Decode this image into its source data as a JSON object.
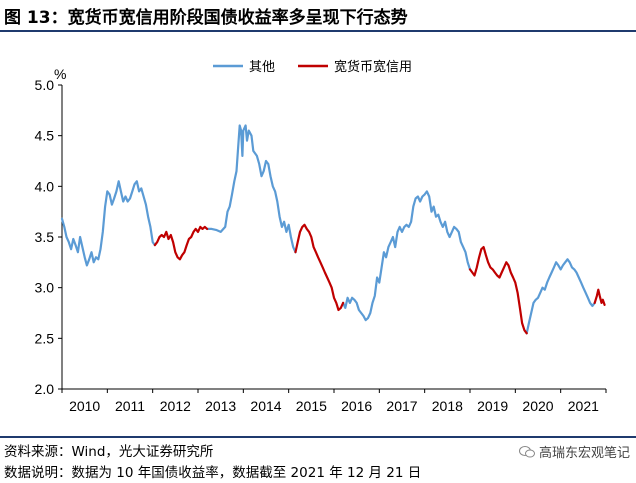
{
  "figure": {
    "title": "图 13：宽货币宽信用阶段国债收益率多呈现下行态势",
    "source_line": "资料来源：Wind，光大证券研究所",
    "note_line": "数据说明：数据为 10 年国债收益率，数据截至 2021 年 12 月 21 日",
    "watermark": "高瑞东宏观笔记"
  },
  "colors": {
    "other": "#5b9bd5",
    "easing": "#c00000",
    "rule": "#1f3a6e"
  },
  "chart_data": {
    "type": "line",
    "unit_label": "%",
    "xlim": [
      2010.0,
      2022.0
    ],
    "ylim": [
      2.0,
      5.0
    ],
    "yticks": [
      "2.0",
      "2.5",
      "3.0",
      "3.5",
      "4.0",
      "4.5",
      "5.0"
    ],
    "xticks": [
      "2010",
      "2011",
      "2012",
      "2013",
      "2014",
      "2015",
      "2016",
      "2017",
      "2018",
      "2019",
      "2020",
      "2021"
    ],
    "legend": {
      "position": "top",
      "labels": [
        "其他",
        "宽货币宽信用"
      ]
    },
    "grid": false,
    "series": [
      {
        "name": "其他",
        "color_key": "other",
        "segments": [
          [
            [
              2010.0,
              3.68
            ],
            [
              2010.05,
              3.6
            ],
            [
              2010.1,
              3.5
            ],
            [
              2010.15,
              3.45
            ],
            [
              2010.2,
              3.38
            ],
            [
              2010.25,
              3.48
            ],
            [
              2010.3,
              3.42
            ],
            [
              2010.35,
              3.35
            ],
            [
              2010.4,
              3.5
            ],
            [
              2010.45,
              3.4
            ],
            [
              2010.5,
              3.3
            ],
            [
              2010.55,
              3.22
            ],
            [
              2010.6,
              3.28
            ],
            [
              2010.65,
              3.35
            ],
            [
              2010.7,
              3.25
            ],
            [
              2010.75,
              3.3
            ],
            [
              2010.8,
              3.28
            ],
            [
              2010.85,
              3.38
            ],
            [
              2010.9,
              3.55
            ],
            [
              2010.95,
              3.8
            ],
            [
              2011.0,
              3.95
            ],
            [
              2011.05,
              3.92
            ],
            [
              2011.1,
              3.82
            ],
            [
              2011.15,
              3.88
            ],
            [
              2011.2,
              3.95
            ],
            [
              2011.25,
              4.05
            ],
            [
              2011.3,
              3.95
            ],
            [
              2011.35,
              3.85
            ],
            [
              2011.4,
              3.9
            ],
            [
              2011.45,
              3.85
            ],
            [
              2011.5,
              3.88
            ],
            [
              2011.55,
              3.95
            ],
            [
              2011.6,
              4.02
            ],
            [
              2011.65,
              4.05
            ],
            [
              2011.7,
              3.95
            ],
            [
              2011.75,
              3.98
            ],
            [
              2011.8,
              3.9
            ],
            [
              2011.85,
              3.82
            ],
            [
              2011.9,
              3.7
            ],
            [
              2011.95,
              3.6
            ],
            [
              2012.0,
              3.45
            ],
            [
              2012.05,
              3.42
            ]
          ],
          [
            [
              2013.2,
              3.58
            ],
            [
              2013.3,
              3.58
            ],
            [
              2013.4,
              3.57
            ],
            [
              2013.5,
              3.55
            ],
            [
              2013.6,
              3.6
            ],
            [
              2013.65,
              3.75
            ],
            [
              2013.7,
              3.8
            ],
            [
              2013.75,
              3.92
            ],
            [
              2013.8,
              4.05
            ],
            [
              2013.85,
              4.15
            ],
            [
              2013.88,
              4.35
            ],
            [
              2013.92,
              4.6
            ],
            [
              2013.95,
              4.55
            ],
            [
              2013.98,
              4.3
            ],
            [
              2014.0,
              4.55
            ],
            [
              2014.05,
              4.6
            ],
            [
              2014.08,
              4.45
            ],
            [
              2014.12,
              4.55
            ],
            [
              2014.18,
              4.5
            ],
            [
              2014.22,
              4.35
            ],
            [
              2014.3,
              4.3
            ],
            [
              2014.35,
              4.22
            ],
            [
              2014.4,
              4.1
            ],
            [
              2014.45,
              4.15
            ],
            [
              2014.5,
              4.25
            ],
            [
              2014.55,
              4.22
            ],
            [
              2014.6,
              4.1
            ],
            [
              2014.65,
              4.0
            ],
            [
              2014.7,
              3.95
            ],
            [
              2014.75,
              3.85
            ],
            [
              2014.8,
              3.7
            ],
            [
              2014.85,
              3.6
            ],
            [
              2014.9,
              3.65
            ],
            [
              2014.95,
              3.55
            ],
            [
              2015.0,
              3.62
            ],
            [
              2015.05,
              3.5
            ],
            [
              2015.1,
              3.4
            ],
            [
              2015.15,
              3.35
            ]
          ],
          [
            [
              2016.2,
              2.85
            ],
            [
              2016.25,
              2.8
            ],
            [
              2016.3,
              2.9
            ],
            [
              2016.35,
              2.85
            ],
            [
              2016.4,
              2.9
            ],
            [
              2016.45,
              2.88
            ],
            [
              2016.5,
              2.85
            ],
            [
              2016.55,
              2.78
            ],
            [
              2016.6,
              2.75
            ],
            [
              2016.65,
              2.72
            ],
            [
              2016.7,
              2.68
            ],
            [
              2016.75,
              2.7
            ],
            [
              2016.8,
              2.75
            ],
            [
              2016.85,
              2.85
            ],
            [
              2016.9,
              2.92
            ],
            [
              2016.95,
              3.1
            ],
            [
              2017.0,
              3.05
            ],
            [
              2017.05,
              3.2
            ],
            [
              2017.1,
              3.35
            ],
            [
              2017.15,
              3.3
            ],
            [
              2017.2,
              3.4
            ],
            [
              2017.25,
              3.45
            ],
            [
              2017.3,
              3.5
            ],
            [
              2017.35,
              3.4
            ],
            [
              2017.4,
              3.55
            ],
            [
              2017.45,
              3.6
            ],
            [
              2017.5,
              3.55
            ],
            [
              2017.55,
              3.6
            ],
            [
              2017.6,
              3.62
            ],
            [
              2017.65,
              3.6
            ],
            [
              2017.7,
              3.65
            ],
            [
              2017.75,
              3.8
            ],
            [
              2017.8,
              3.88
            ],
            [
              2017.85,
              3.9
            ],
            [
              2017.9,
              3.85
            ],
            [
              2017.95,
              3.9
            ],
            [
              2018.0,
              3.92
            ],
            [
              2018.05,
              3.95
            ],
            [
              2018.1,
              3.9
            ],
            [
              2018.15,
              3.75
            ],
            [
              2018.2,
              3.8
            ],
            [
              2018.25,
              3.7
            ],
            [
              2018.3,
              3.72
            ],
            [
              2018.35,
              3.65
            ],
            [
              2018.4,
              3.6
            ],
            [
              2018.45,
              3.65
            ],
            [
              2018.5,
              3.55
            ],
            [
              2018.55,
              3.5
            ],
            [
              2018.6,
              3.55
            ],
            [
              2018.65,
              3.6
            ],
            [
              2018.7,
              3.58
            ],
            [
              2018.75,
              3.55
            ],
            [
              2018.8,
              3.45
            ],
            [
              2018.85,
              3.4
            ],
            [
              2018.9,
              3.35
            ],
            [
              2018.95,
              3.25
            ],
            [
              2019.0,
              3.18
            ]
          ],
          [
            [
              2020.25,
              2.55
            ],
            [
              2020.3,
              2.65
            ],
            [
              2020.35,
              2.75
            ],
            [
              2020.4,
              2.85
            ],
            [
              2020.45,
              2.88
            ],
            [
              2020.5,
              2.9
            ],
            [
              2020.55,
              2.95
            ],
            [
              2020.6,
              3.0
            ],
            [
              2020.65,
              2.98
            ],
            [
              2020.7,
              3.05
            ],
            [
              2020.75,
              3.1
            ],
            [
              2020.8,
              3.15
            ],
            [
              2020.85,
              3.2
            ],
            [
              2020.9,
              3.25
            ],
            [
              2020.95,
              3.22
            ],
            [
              2021.0,
              3.18
            ],
            [
              2021.05,
              3.22
            ],
            [
              2021.1,
              3.25
            ],
            [
              2021.15,
              3.28
            ],
            [
              2021.2,
              3.25
            ],
            [
              2021.25,
              3.2
            ],
            [
              2021.3,
              3.18
            ],
            [
              2021.35,
              3.15
            ],
            [
              2021.4,
              3.1
            ],
            [
              2021.45,
              3.05
            ],
            [
              2021.5,
              3.0
            ],
            [
              2021.55,
              2.95
            ],
            [
              2021.6,
              2.9
            ],
            [
              2021.65,
              2.85
            ],
            [
              2021.7,
              2.82
            ],
            [
              2021.75,
              2.85
            ]
          ]
        ]
      },
      {
        "name": "宽货币宽信用",
        "color_key": "easing",
        "segments": [
          [
            [
              2012.05,
              3.42
            ],
            [
              2012.1,
              3.45
            ],
            [
              2012.15,
              3.5
            ],
            [
              2012.2,
              3.52
            ],
            [
              2012.25,
              3.5
            ],
            [
              2012.3,
              3.55
            ],
            [
              2012.35,
              3.48
            ],
            [
              2012.4,
              3.52
            ],
            [
              2012.45,
              3.45
            ],
            [
              2012.5,
              3.35
            ],
            [
              2012.55,
              3.3
            ],
            [
              2012.6,
              3.28
            ],
            [
              2012.65,
              3.32
            ],
            [
              2012.7,
              3.35
            ],
            [
              2012.75,
              3.42
            ],
            [
              2012.8,
              3.48
            ],
            [
              2012.85,
              3.5
            ],
            [
              2012.9,
              3.55
            ],
            [
              2012.95,
              3.58
            ],
            [
              2013.0,
              3.55
            ],
            [
              2013.05,
              3.6
            ],
            [
              2013.1,
              3.58
            ],
            [
              2013.15,
              3.6
            ],
            [
              2013.2,
              3.58
            ]
          ],
          [
            [
              2015.15,
              3.35
            ],
            [
              2015.2,
              3.45
            ],
            [
              2015.25,
              3.55
            ],
            [
              2015.3,
              3.6
            ],
            [
              2015.35,
              3.62
            ],
            [
              2015.4,
              3.58
            ],
            [
              2015.45,
              3.55
            ],
            [
              2015.5,
              3.5
            ],
            [
              2015.55,
              3.4
            ],
            [
              2015.6,
              3.35
            ],
            [
              2015.65,
              3.3
            ],
            [
              2015.7,
              3.25
            ],
            [
              2015.75,
              3.2
            ],
            [
              2015.8,
              3.15
            ],
            [
              2015.85,
              3.1
            ],
            [
              2015.9,
              3.05
            ],
            [
              2015.95,
              3.0
            ],
            [
              2016.0,
              2.9
            ],
            [
              2016.05,
              2.85
            ],
            [
              2016.1,
              2.78
            ],
            [
              2016.15,
              2.8
            ],
            [
              2016.2,
              2.85
            ]
          ],
          [
            [
              2019.0,
              3.18
            ],
            [
              2019.05,
              3.15
            ],
            [
              2019.1,
              3.12
            ],
            [
              2019.15,
              3.2
            ],
            [
              2019.2,
              3.3
            ],
            [
              2019.25,
              3.38
            ],
            [
              2019.3,
              3.4
            ],
            [
              2019.35,
              3.32
            ],
            [
              2019.4,
              3.25
            ],
            [
              2019.45,
              3.2
            ],
            [
              2019.5,
              3.18
            ],
            [
              2019.55,
              3.15
            ],
            [
              2019.6,
              3.12
            ],
            [
              2019.65,
              3.1
            ],
            [
              2019.7,
              3.15
            ],
            [
              2019.75,
              3.2
            ],
            [
              2019.8,
              3.25
            ],
            [
              2019.85,
              3.22
            ],
            [
              2019.9,
              3.15
            ],
            [
              2019.95,
              3.1
            ],
            [
              2020.0,
              3.05
            ],
            [
              2020.05,
              2.95
            ],
            [
              2020.1,
              2.8
            ],
            [
              2020.15,
              2.65
            ],
            [
              2020.2,
              2.58
            ],
            [
              2020.25,
              2.55
            ]
          ],
          [
            [
              2021.75,
              2.85
            ],
            [
              2021.8,
              2.92
            ],
            [
              2021.83,
              2.98
            ],
            [
              2021.86,
              2.92
            ],
            [
              2021.9,
              2.85
            ],
            [
              2021.93,
              2.88
            ],
            [
              2021.97,
              2.83
            ]
          ]
        ]
      }
    ]
  }
}
